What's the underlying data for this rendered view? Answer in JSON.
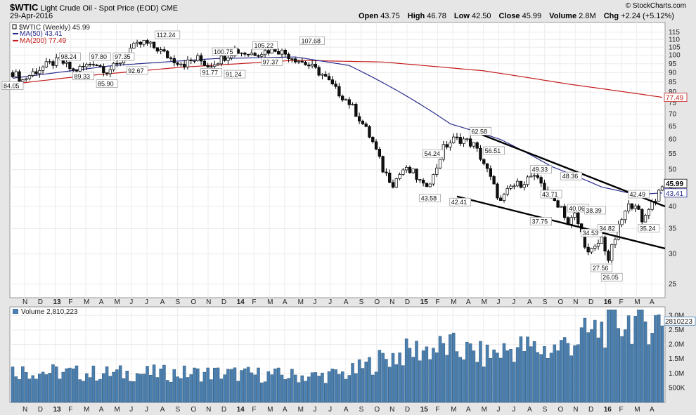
{
  "header": {
    "symbol": "$WTIC",
    "description": "Light Crude Oil - Spot Price (EOD)",
    "exchange": "CME",
    "date": "29-Apr-2016",
    "watermark": "© StockCharts.com",
    "stats": [
      {
        "label": "Open",
        "value": "43.75"
      },
      {
        "label": "High",
        "value": "46.78"
      },
      {
        "label": "Low",
        "value": "42.50"
      },
      {
        "label": "Close",
        "value": "45.99"
      },
      {
        "label": "Volume",
        "value": "2.8M"
      },
      {
        "label": "Chg",
        "value": "+2.24 (+5.12%)"
      }
    ]
  },
  "legend": {
    "price": "$WTIC (Weekly) 45.99",
    "ma50": "MA(50) 43.41",
    "ma200": "MA(200) 77.49",
    "volume": "Volume 2,810,223"
  },
  "colors": {
    "background": "#e6e6e6",
    "plot": "#ffffff",
    "ma50": "#2b2e8f",
    "ma200": "#c41d1d",
    "volume": "#4a7fb0",
    "candle_up": "#ffffff",
    "candle_down": "#111111"
  },
  "chart_data": [
    {
      "type": "line",
      "subtype": "candlestick-weekly",
      "title": "$WTIC Light Crude Oil - Spot Price (EOD) CME",
      "y_scale": "log",
      "ylim": [
        23,
        122
      ],
      "y_ticks": [
        25,
        30,
        35,
        40,
        45,
        50,
        55,
        60,
        65,
        70,
        75,
        80,
        85,
        90,
        95,
        100,
        105,
        110,
        115
      ],
      "x_ticks": [
        "N",
        "D",
        "13",
        "F",
        "M",
        "A",
        "M",
        "J",
        "J",
        "A",
        "S",
        "O",
        "N",
        "D",
        "14",
        "F",
        "M",
        "A",
        "M",
        "J",
        "J",
        "A",
        "S",
        "O",
        "N",
        "D",
        "15",
        "F",
        "M",
        "A",
        "M",
        "J",
        "J",
        "A",
        "S",
        "O",
        "N",
        "D",
        "16",
        "F",
        "M",
        "A"
      ],
      "price_path": [
        {
          "week": 0,
          "close": 90
        },
        {
          "week": 3,
          "close": 86
        },
        {
          "week": 6,
          "close": 90
        },
        {
          "week": 10,
          "close": 94
        },
        {
          "week": 14,
          "close": 97
        },
        {
          "week": 18,
          "close": 91
        },
        {
          "week": 21,
          "close": 93
        },
        {
          "week": 24,
          "close": 96
        },
        {
          "week": 28,
          "close": 91
        },
        {
          "week": 31,
          "close": 94
        },
        {
          "week": 35,
          "close": 104
        },
        {
          "week": 39,
          "close": 108
        },
        {
          "week": 43,
          "close": 104
        },
        {
          "week": 47,
          "close": 98
        },
        {
          "week": 51,
          "close": 95
        },
        {
          "week": 55,
          "close": 98
        },
        {
          "week": 58,
          "close": 94
        },
        {
          "week": 62,
          "close": 98
        },
        {
          "week": 66,
          "close": 103
        },
        {
          "week": 70,
          "close": 101
        },
        {
          "week": 74,
          "close": 102
        },
        {
          "week": 78,
          "close": 104
        },
        {
          "week": 81,
          "close": 101
        },
        {
          "week": 84,
          "close": 98
        },
        {
          "week": 88,
          "close": 94
        },
        {
          "week": 92,
          "close": 89
        },
        {
          "week": 96,
          "close": 81
        },
        {
          "week": 100,
          "close": 75
        },
        {
          "week": 104,
          "close": 66
        },
        {
          "week": 107,
          "close": 59
        },
        {
          "week": 110,
          "close": 50
        },
        {
          "week": 113,
          "close": 46
        },
        {
          "week": 116,
          "close": 50
        },
        {
          "week": 119,
          "close": 49
        },
        {
          "week": 122,
          "close": 45
        },
        {
          "week": 125,
          "close": 48
        },
        {
          "week": 128,
          "close": 57
        },
        {
          "week": 131,
          "close": 60
        },
        {
          "week": 134,
          "close": 60
        },
        {
          "week": 137,
          "close": 58
        },
        {
          "week": 140,
          "close": 52
        },
        {
          "week": 143,
          "close": 45
        },
        {
          "week": 145,
          "close": 41
        },
        {
          "week": 148,
          "close": 45
        },
        {
          "week": 151,
          "close": 46
        },
        {
          "week": 154,
          "close": 48
        },
        {
          "week": 157,
          "close": 46
        },
        {
          "week": 160,
          "close": 42
        },
        {
          "week": 163,
          "close": 40
        },
        {
          "week": 165,
          "close": 36
        },
        {
          "week": 167,
          "close": 38
        },
        {
          "week": 169,
          "close": 34
        },
        {
          "week": 171,
          "close": 30
        },
        {
          "week": 173,
          "close": 31
        },
        {
          "week": 175,
          "close": 33
        },
        {
          "week": 177,
          "close": 29
        },
        {
          "week": 179,
          "close": 33
        },
        {
          "week": 181,
          "close": 37
        },
        {
          "week": 183,
          "close": 40
        },
        {
          "week": 185,
          "close": 41
        },
        {
          "week": 187,
          "close": 36
        },
        {
          "week": 189,
          "close": 40
        },
        {
          "week": 191,
          "close": 42
        },
        {
          "week": 193,
          "close": 46
        }
      ],
      "ma50_path": [
        {
          "week": 0,
          "close": 87
        },
        {
          "week": 30,
          "close": 94
        },
        {
          "week": 60,
          "close": 98
        },
        {
          "week": 84,
          "close": 99
        },
        {
          "week": 100,
          "close": 94
        },
        {
          "week": 115,
          "close": 80
        },
        {
          "week": 130,
          "close": 66
        },
        {
          "week": 145,
          "close": 60
        },
        {
          "week": 160,
          "close": 51
        },
        {
          "week": 175,
          "close": 45
        },
        {
          "week": 185,
          "close": 43
        },
        {
          "week": 193,
          "close": 43.41
        }
      ],
      "ma200_path": [
        {
          "week": 0,
          "close": 84
        },
        {
          "week": 20,
          "close": 88
        },
        {
          "week": 50,
          "close": 93
        },
        {
          "week": 84,
          "close": 97
        },
        {
          "week": 110,
          "close": 96
        },
        {
          "week": 140,
          "close": 91
        },
        {
          "week": 165,
          "close": 84
        },
        {
          "week": 193,
          "close": 77.49
        }
      ],
      "trendlines": [
        {
          "from": {
            "week": 136,
            "close": 63.5
          },
          "to": {
            "week": 193,
            "close": 40
          }
        },
        {
          "from": {
            "week": 132,
            "close": 42.5
          },
          "to": {
            "week": 193,
            "close": 31
          }
        }
      ],
      "annotations": [
        {
          "week": 0,
          "value": "84.05",
          "close": 83
        },
        {
          "week": 17,
          "value": "98.24",
          "close": 99
        },
        {
          "week": 21,
          "value": "89.33",
          "close": 88
        },
        {
          "week": 26,
          "value": "97.80",
          "close": 99
        },
        {
          "week": 28,
          "value": "85.90",
          "close": 84
        },
        {
          "week": 33,
          "value": "97.35",
          "close": 99
        },
        {
          "week": 37,
          "value": "92.67",
          "close": 91
        },
        {
          "week": 46,
          "value": "112.24",
          "close": 113
        },
        {
          "week": 59,
          "value": "91.77",
          "close": 90
        },
        {
          "week": 63,
          "value": "100.75",
          "close": 102
        },
        {
          "week": 66,
          "value": "91.24",
          "close": 89
        },
        {
          "week": 75,
          "value": "105.22",
          "close": 106
        },
        {
          "week": 77,
          "value": "97.37",
          "close": 96
        },
        {
          "week": 89,
          "value": "107.68",
          "close": 109
        },
        {
          "week": 124,
          "value": "43.58",
          "close": 42
        },
        {
          "week": 125,
          "value": "54.24",
          "close": 55
        },
        {
          "week": 133,
          "value": "42.41",
          "close": 41
        },
        {
          "week": 139,
          "value": "62.58",
          "close": 63
        },
        {
          "week": 143,
          "value": "56.51",
          "close": 56
        },
        {
          "week": 157,
          "value": "49.33",
          "close": 50
        },
        {
          "week": 157,
          "value": "37.75",
          "close": 36.5
        },
        {
          "week": 160,
          "value": "43.71",
          "close": 43
        },
        {
          "week": 166,
          "value": "48.36",
          "close": 48
        },
        {
          "week": 168,
          "value": "40.06",
          "close": 39.5
        },
        {
          "week": 173,
          "value": "38.39",
          "close": 39
        },
        {
          "week": 172,
          "value": "34.53",
          "close": 34
        },
        {
          "week": 177,
          "value": "34.82",
          "close": 35
        },
        {
          "week": 175,
          "value": "27.56",
          "close": 27.5
        },
        {
          "week": 178,
          "value": "26.05",
          "close": 26
        },
        {
          "week": 186,
          "value": "42.49",
          "close": 43
        },
        {
          "week": 189,
          "value": "35.24",
          "close": 35
        }
      ],
      "right_labels": [
        {
          "value": "45.99",
          "close": 45.99
        },
        {
          "value": "43.41",
          "close": 43.41
        },
        {
          "value": "77.49",
          "close": 77.49
        }
      ]
    },
    {
      "type": "bar",
      "title": "Volume 2,810,223",
      "y_ticks": [
        "3.0M",
        "2.5M",
        "2.0M",
        "1.5M",
        "1.0M",
        "500K"
      ],
      "y_tick_values": [
        3.0,
        2.5,
        2.0,
        1.5,
        1.0,
        0.5
      ],
      "ylim": [
        0,
        3.3
      ],
      "last_label": "2810223",
      "volume_path": [
        {
          "week": 0,
          "vol": 1.1
        },
        {
          "week": 20,
          "vol": 1.0
        },
        {
          "week": 60,
          "vol": 1.0
        },
        {
          "week": 90,
          "vol": 0.9
        },
        {
          "week": 100,
          "vol": 1.0
        },
        {
          "week": 110,
          "vol": 1.5
        },
        {
          "week": 120,
          "vol": 1.8
        },
        {
          "week": 130,
          "vol": 1.9
        },
        {
          "week": 140,
          "vol": 1.6
        },
        {
          "week": 150,
          "vol": 1.9
        },
        {
          "week": 160,
          "vol": 1.8
        },
        {
          "week": 170,
          "vol": 2.3
        },
        {
          "week": 180,
          "vol": 2.8
        },
        {
          "week": 193,
          "vol": 2.81
        }
      ]
    }
  ]
}
